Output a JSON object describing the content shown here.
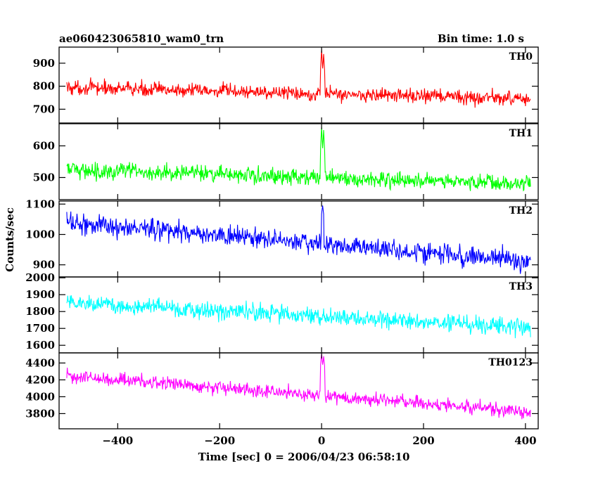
{
  "chart_data": {
    "type": "line",
    "title": "ae060423065810_wam0_trn",
    "bin_time_label": "Bin time: 1.0 s",
    "xlabel": "Time [sec] 0 = 2006/04/23 06:58:10",
    "ylabel": "Counts/sec",
    "xlim": [
      -515,
      425
    ],
    "xticks": [
      -400,
      -200,
      0,
      200,
      400
    ],
    "xtick_labels": [
      "−400",
      "−200",
      "0",
      "200",
      "400"
    ],
    "x_start": -500,
    "x_end": 410,
    "bin": 1.0,
    "panels": [
      {
        "name": "TH0",
        "color": "#ff0000",
        "ylim": [
          640,
          970
        ],
        "yticks": [
          700,
          800,
          900
        ],
        "ytick_labels": [
          "700",
          "800",
          "900"
        ],
        "level_start": 795,
        "level_end": 745,
        "noise": 28,
        "burst": [
          {
            "x": 0,
            "peak": 960
          },
          {
            "x": 4,
            "peak": 940
          }
        ]
      },
      {
        "name": "TH1",
        "color": "#00ff00",
        "ylim": [
          430,
          670
        ],
        "yticks": [
          500,
          600
        ],
        "ytick_labels": [
          "500",
          "600"
        ],
        "level_start": 525,
        "level_end": 480,
        "noise": 23,
        "burst": [
          {
            "x": 0,
            "peak": 660
          },
          {
            "x": 4,
            "peak": 650
          }
        ]
      },
      {
        "name": "TH2",
        "color": "#0000ff",
        "ylim": [
          860,
          1110
        ],
        "yticks": [
          900,
          1000,
          1100
        ],
        "ytick_labels": [
          "900",
          "1000",
          "1100"
        ],
        "level_start": 1040,
        "level_end": 910,
        "noise": 30,
        "burst": [
          {
            "x": 2,
            "peak": 1095
          }
        ]
      },
      {
        "name": "TH3",
        "color": "#00ffff",
        "ylim": [
          1555,
          2005
        ],
        "yticks": [
          1600,
          1700,
          1800,
          1900,
          2000
        ],
        "ytick_labels": [
          "1600",
          "1700",
          "1800",
          "1900",
          "2000"
        ],
        "level_start": 1855,
        "level_end": 1700,
        "noise": 45,
        "burst": []
      },
      {
        "name": "TH0123",
        "color": "#ff00ff",
        "ylim": [
          3620,
          4520
        ],
        "yticks": [
          3800,
          4000,
          4200,
          4400
        ],
        "ytick_labels": [
          "3800",
          "4000",
          "4200",
          "4400"
        ],
        "level_start": 4250,
        "level_end": 3820,
        "noise": 70,
        "burst": [
          {
            "x": 0,
            "peak": 4510
          },
          {
            "x": 4,
            "peak": 4480
          }
        ]
      }
    ]
  }
}
